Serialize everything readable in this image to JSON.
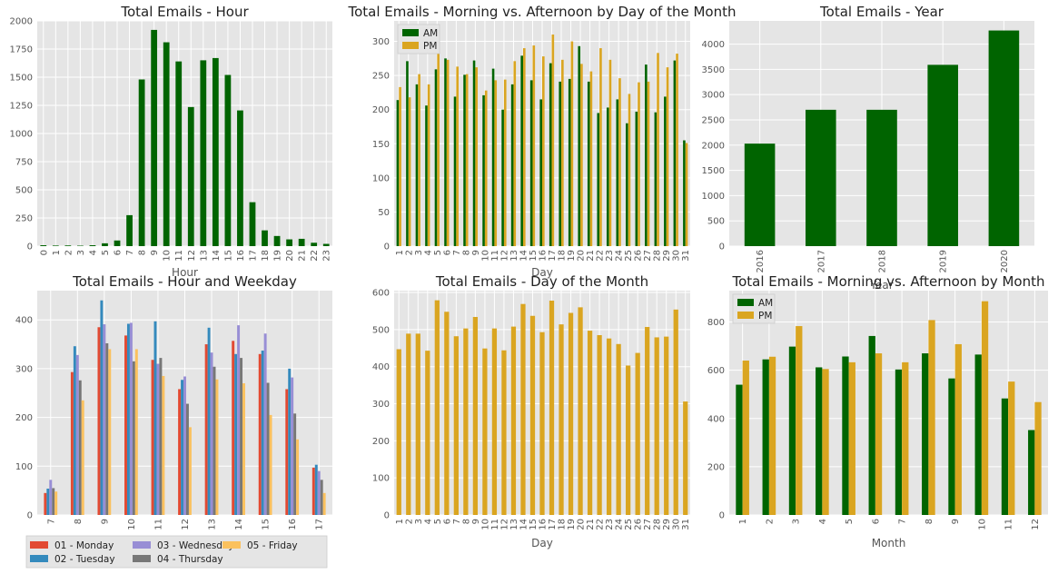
{
  "colors": {
    "axes_bg": "#e5e5e5",
    "grid": "#ffffff",
    "green": "#006400",
    "gold": "#daa520",
    "monday": "#e24a33",
    "tuesday": "#348abd",
    "wednesday": "#988ed5",
    "thursday": "#777777",
    "friday": "#fbc15e",
    "legend_bg": "#e5e5e5"
  },
  "chart_data": [
    {
      "id": "hour",
      "type": "bar",
      "title": "Total Emails - Hour",
      "xlabel": "Hour",
      "ylabel": "",
      "categories": [
        "0",
        "1",
        "2",
        "3",
        "4",
        "5",
        "6",
        "7",
        "8",
        "9",
        "10",
        "11",
        "12",
        "13",
        "14",
        "15",
        "16",
        "17",
        "18",
        "19",
        "20",
        "21",
        "22",
        "23"
      ],
      "series": [
        {
          "color_key": "green",
          "values": [
            8,
            5,
            6,
            4,
            8,
            25,
            50,
            275,
            1480,
            1920,
            1810,
            1640,
            1235,
            1650,
            1670,
            1520,
            1205,
            390,
            140,
            90,
            60,
            65,
            30,
            20
          ]
        }
      ],
      "ylim": [
        0,
        2000
      ],
      "yticks": [
        0,
        250,
        500,
        750,
        1000,
        1250,
        1500,
        1750,
        2000
      ],
      "grid": true
    },
    {
      "id": "day_ampm",
      "type": "bar",
      "title": "Total Emails - Morning vs. Afternoon by Day of the Month",
      "xlabel": "Day",
      "ylabel": "",
      "categories": [
        "1",
        "2",
        "3",
        "4",
        "5",
        "6",
        "7",
        "8",
        "9",
        "10",
        "11",
        "12",
        "13",
        "14",
        "15",
        "16",
        "17",
        "18",
        "19",
        "20",
        "21",
        "22",
        "23",
        "24",
        "25",
        "26",
        "27",
        "28",
        "29",
        "30",
        "31"
      ],
      "series": [
        {
          "name": "AM",
          "color_key": "green",
          "values": [
            214,
            271,
            237,
            206,
            259,
            275,
            219,
            251,
            272,
            221,
            260,
            200,
            237,
            279,
            243,
            215,
            268,
            241,
            245,
            293,
            241,
            195,
            203,
            215,
            180,
            197,
            266,
            196,
            219,
            272,
            155
          ]
        },
        {
          "name": "PM",
          "color_key": "gold",
          "values": [
            233,
            218,
            252,
            237,
            320,
            273,
            263,
            252,
            262,
            228,
            243,
            244,
            271,
            290,
            294,
            278,
            310,
            273,
            300,
            267,
            256,
            290,
            273,
            246,
            223,
            240,
            241,
            283,
            262,
            282,
            151
          ]
        }
      ],
      "ylim": [
        0,
        330
      ],
      "yticks": [
        0,
        50,
        100,
        150,
        200,
        250,
        300
      ],
      "legend": "top-left",
      "grid": true
    },
    {
      "id": "year",
      "type": "bar",
      "title": "Total Emails - Year",
      "xlabel": "Year",
      "ylabel": "",
      "categories": [
        "2016",
        "2017",
        "2018",
        "2019",
        "2020"
      ],
      "series": [
        {
          "color_key": "green",
          "values": [
            2030,
            2700,
            2700,
            3590,
            4270
          ]
        }
      ],
      "ylim": [
        0,
        4460
      ],
      "yticks": [
        0,
        500,
        1000,
        1500,
        2000,
        2500,
        3000,
        3500,
        4000
      ],
      "grid": true
    },
    {
      "id": "hour_weekday",
      "type": "bar",
      "title": "Total Emails - Hour and Weekday",
      "xlabel": "",
      "ylabel": "",
      "categories": [
        "7",
        "8",
        "9",
        "10",
        "11",
        "12",
        "13",
        "14",
        "15",
        "16",
        "17"
      ],
      "series": [
        {
          "name": "01 - Monday",
          "color_key": "monday",
          "values": [
            45,
            293,
            385,
            368,
            318,
            258,
            350,
            357,
            330,
            258,
            97
          ]
        },
        {
          "name": "02 - Tuesday",
          "color_key": "tuesday",
          "values": [
            54,
            346,
            440,
            392,
            397,
            277,
            384,
            330,
            337,
            300,
            103
          ]
        },
        {
          "name": "03 - Wednesday",
          "color_key": "wednesday",
          "values": [
            72,
            328,
            391,
            394,
            310,
            284,
            333,
            389,
            372,
            282,
            90
          ]
        },
        {
          "name": "04 - Thursday",
          "color_key": "thursday",
          "values": [
            55,
            276,
            352,
            315,
            322,
            228,
            304,
            322,
            271,
            208,
            72
          ]
        },
        {
          "name": "05 - Friday",
          "color_key": "friday",
          "values": [
            48,
            235,
            340,
            340,
            285,
            180,
            278,
            270,
            205,
            155,
            45
          ]
        }
      ],
      "ylim": [
        0,
        460
      ],
      "yticks": [
        0,
        100,
        200,
        300,
        400
      ],
      "legend": "bottom-left, outside",
      "grid": true
    },
    {
      "id": "day",
      "type": "bar",
      "title": "Total Emails - Day of the Month",
      "xlabel": "Day",
      "ylabel": "",
      "categories": [
        "1",
        "2",
        "3",
        "4",
        "5",
        "6",
        "7",
        "8",
        "9",
        "10",
        "11",
        "12",
        "13",
        "14",
        "15",
        "16",
        "17",
        "18",
        "19",
        "20",
        "21",
        "22",
        "23",
        "24",
        "25",
        "26",
        "27",
        "28",
        "29",
        "30",
        "31"
      ],
      "series": [
        {
          "color_key": "gold",
          "values": [
            447,
            489,
            489,
            443,
            579,
            548,
            482,
            503,
            534,
            449,
            503,
            444,
            508,
            569,
            537,
            493,
            578,
            514,
            545,
            560,
            497,
            485,
            476,
            461,
            403,
            437,
            507,
            479,
            481,
            554,
            306
          ]
        }
      ],
      "ylim": [
        0,
        605
      ],
      "yticks": [
        0,
        100,
        200,
        300,
        400,
        500,
        600
      ],
      "grid": true
    },
    {
      "id": "month_ampm",
      "type": "bar",
      "title": "Total Emails - Morning vs. Afternoon by Month",
      "xlabel": "Month",
      "ylabel": "",
      "categories": [
        "1",
        "2",
        "3",
        "4",
        "5",
        "6",
        "7",
        "8",
        "9",
        "10",
        "11",
        "12"
      ],
      "series": [
        {
          "name": "AM",
          "color_key": "green",
          "values": [
            540,
            645,
            698,
            612,
            657,
            742,
            603,
            670,
            566,
            665,
            483,
            352
          ]
        },
        {
          "name": "PM",
          "color_key": "gold",
          "values": [
            640,
            656,
            783,
            605,
            633,
            670,
            633,
            808,
            708,
            886,
            553,
            468
          ]
        }
      ],
      "ylim": [
        0,
        930
      ],
      "yticks": [
        0,
        200,
        400,
        600,
        800
      ],
      "legend": "top-left",
      "grid": true
    }
  ]
}
